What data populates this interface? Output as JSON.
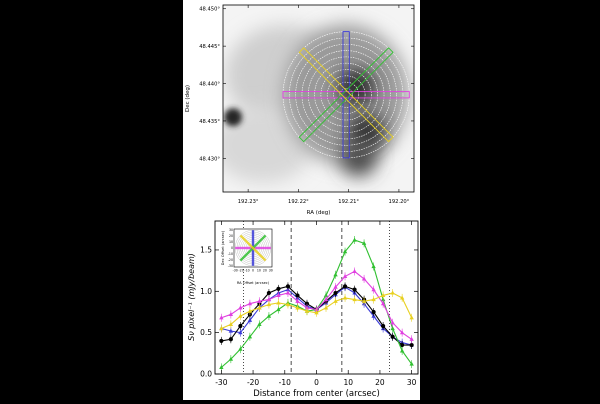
{
  "chart_data": [
    {
      "type": "heatmap",
      "xlabel": "RA (deg)",
      "ylabel": "Dec (deg)",
      "xlim": [
        192.235,
        192.197
      ],
      "ylim": [
        48.4255,
        48.4505
      ],
      "x_ticks": [
        192.23,
        192.22,
        192.21,
        192.2
      ],
      "x_tick_labels": [
        "192.23°",
        "192.22°",
        "192.21°",
        "192.20°"
      ],
      "y_ticks": [
        48.45,
        48.445,
        48.44,
        48.435,
        48.43
      ],
      "y_tick_labels": [
        "48.450°",
        "48.445°",
        "48.440°",
        "48.435°",
        "48.430°"
      ],
      "center": [
        192.2105,
        48.4385
      ],
      "ring_count": 10,
      "slit_colors": {
        "vertical": "#3a3ad8",
        "horizontal": "#e040e0",
        "diagonal_ne": "#30c030",
        "diagonal_nw": "#e8d020"
      },
      "sources": [
        {
          "ra": 192.2085,
          "dec": 48.4395,
          "flux": 1.0
        },
        {
          "ra": 192.2065,
          "dec": 48.4335,
          "flux": 0.95
        },
        {
          "ra": 192.208,
          "dec": 48.43,
          "flux": 0.7
        },
        {
          "ra": 192.233,
          "dec": 48.4355,
          "flux": 1.0
        }
      ]
    },
    {
      "type": "line",
      "xlabel": "Distance from center (arcsec)",
      "ylabel": "Sν pixel⁻¹ (mJy/beam)",
      "xlim": [
        -32,
        32
      ],
      "ylim": [
        0,
        1.85
      ],
      "x_ticks": [
        -30,
        -20,
        -10,
        0,
        10,
        20,
        30
      ],
      "y_ticks": [
        0.0,
        0.5,
        1.0,
        1.5
      ],
      "y_tick_labels": [
        "0.0",
        "0.5",
        "1.0",
        "1.5"
      ],
      "x": [
        -30,
        -27,
        -24,
        -21,
        -18,
        -15,
        -12,
        -9,
        -6,
        -3,
        0,
        3,
        6,
        9,
        12,
        15,
        18,
        21,
        24,
        27,
        30
      ],
      "series": [
        {
          "color": "#3a3ad8",
          "marker": "triangle",
          "values": [
            0.55,
            0.52,
            0.5,
            0.65,
            0.8,
            0.9,
            0.98,
            1.02,
            0.92,
            0.82,
            0.78,
            0.86,
            0.96,
            1.05,
            0.98,
            0.85,
            0.7,
            0.55,
            0.45,
            0.38,
            0.35
          ]
        },
        {
          "color": "#000000",
          "marker": "circle",
          "values": [
            0.4,
            0.42,
            0.58,
            0.72,
            0.85,
            0.98,
            1.03,
            1.06,
            0.95,
            0.85,
            0.78,
            0.88,
            0.98,
            1.06,
            1.02,
            0.9,
            0.75,
            0.58,
            0.45,
            0.35,
            0.35
          ]
        },
        {
          "color": "#30c030",
          "marker": "triangle",
          "values": [
            0.08,
            0.18,
            0.3,
            0.45,
            0.6,
            0.7,
            0.78,
            0.86,
            0.82,
            0.76,
            0.78,
            0.95,
            1.2,
            1.48,
            1.62,
            1.58,
            1.3,
            0.9,
            0.55,
            0.28,
            0.12
          ]
        },
        {
          "color": "#e040e0",
          "marker": "triangle",
          "values": [
            0.68,
            0.72,
            0.8,
            0.85,
            0.88,
            0.9,
            0.95,
            0.98,
            0.88,
            0.8,
            0.78,
            0.9,
            1.05,
            1.18,
            1.24,
            1.15,
            1.02,
            0.85,
            0.62,
            0.5,
            0.42
          ]
        },
        {
          "color": "#e8d020",
          "marker": "triangle",
          "values": [
            0.55,
            0.6,
            0.7,
            0.76,
            0.8,
            0.84,
            0.86,
            0.84,
            0.8,
            0.76,
            0.74,
            0.8,
            0.88,
            0.92,
            0.9,
            0.88,
            0.9,
            0.95,
            0.98,
            0.92,
            0.68
          ]
        }
      ],
      "vlines_dashed": [
        -8,
        8
      ],
      "vlines_dotted": [
        -23,
        23
      ],
      "inset": {
        "xlabel": "RA Offset (arcsec)",
        "ylabel": "Dec Offset (arcsec)",
        "ticks": [
          -30,
          -20,
          -10,
          0,
          10,
          20,
          30
        ],
        "tick_labels": [
          "-30",
          "-20",
          "-10",
          "0",
          "10",
          "20",
          "30"
        ]
      },
      "grid": false
    }
  ]
}
